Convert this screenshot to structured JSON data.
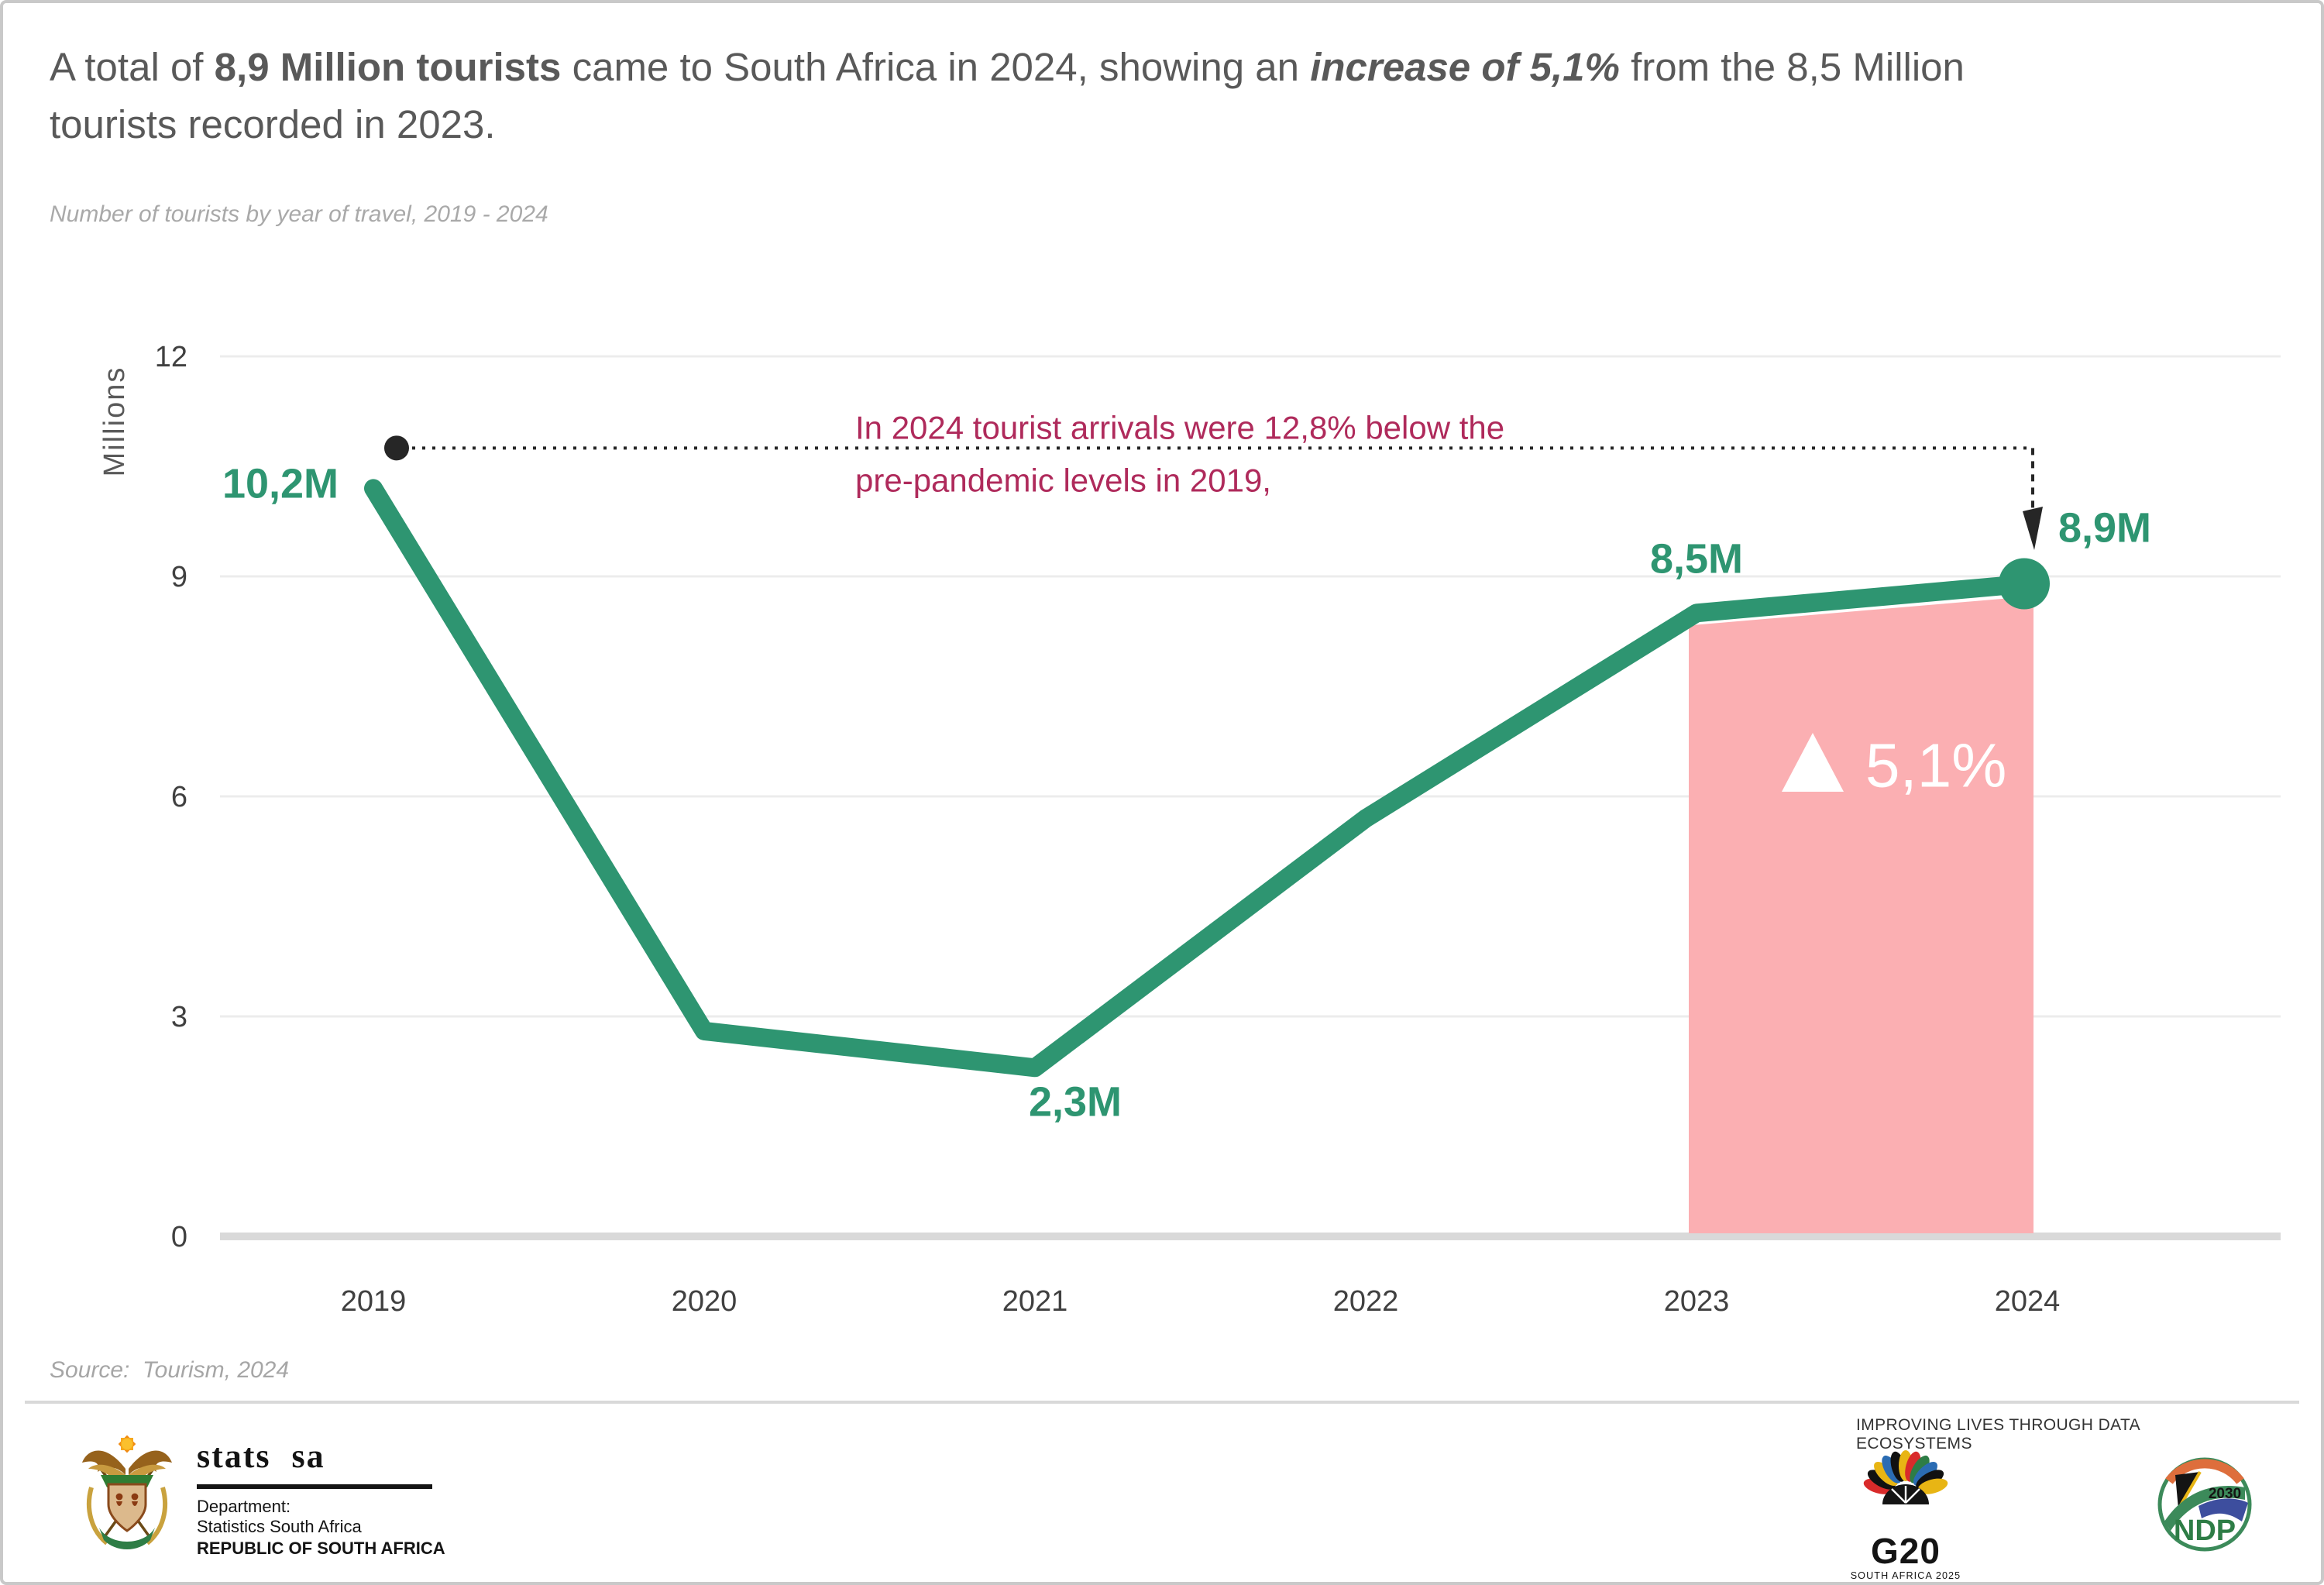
{
  "title": {
    "part1": "A total of ",
    "part2_bold": "8,9 Million tourists",
    "part3": " came to South Africa in 2024, showing an ",
    "part4_bold_italic": "increase of 5,1%",
    "part5": " from the 8,5 Million",
    "part6": "tourists recorded in 2023."
  },
  "subtitle": "Number of tourists by year of travel, 2019 - 2024",
  "source": "Source:  Tourism, 2024",
  "chart_data": {
    "type": "line",
    "title": "Number of tourists by year of travel, 2019 - 2024",
    "x": [
      2019,
      2020,
      2021,
      2022,
      2023,
      2024
    ],
    "x_labels": [
      "2019",
      "2020",
      "2021",
      "2022",
      "2023",
      "2024"
    ],
    "values": [
      10.2,
      2.8,
      2.3,
      5.7,
      8.5,
      8.9
    ],
    "point_labels": [
      "10,2M",
      "",
      "2,3M",
      "",
      "8,5M",
      "8,9M"
    ],
    "ylabel": "Millions",
    "yticks": [
      12,
      9,
      6,
      3,
      0
    ],
    "ytick_labels": [
      "12",
      "9",
      "6",
      "3",
      "0"
    ],
    "ylim": [
      0,
      12
    ],
    "grid": "horizontal",
    "series_color": "#2E9571",
    "highlight_area": {
      "from_year": 2023,
      "to_year": 2024,
      "fill": "#FBAFB2",
      "symbol": "up-triangle",
      "label": "5,1%",
      "label_color": "#FFFFFF"
    },
    "annotation": {
      "line1": "In 2024 tourist arrivals were 12,8% below the",
      "line2": "pre-pandemic levels in 2019,",
      "color": "#AF2A5B",
      "reference_dot_year": 2019,
      "arrow_to_year": 2024
    }
  },
  "footer": {
    "stats_sa": {
      "logo_text": "stats sa",
      "dept_line1": "Department:",
      "dept_line2": "Statistics South Africa",
      "dept_line3": "REPUBLIC OF SOUTH AFRICA"
    },
    "tagline": "IMPROVING LIVES THROUGH DATA ECOSYSTEMS",
    "g20": {
      "name": "G20",
      "subtitle": "SOUTH AFRICA 2025"
    },
    "ndp": {
      "name": "NDP",
      "year": "2030"
    }
  }
}
